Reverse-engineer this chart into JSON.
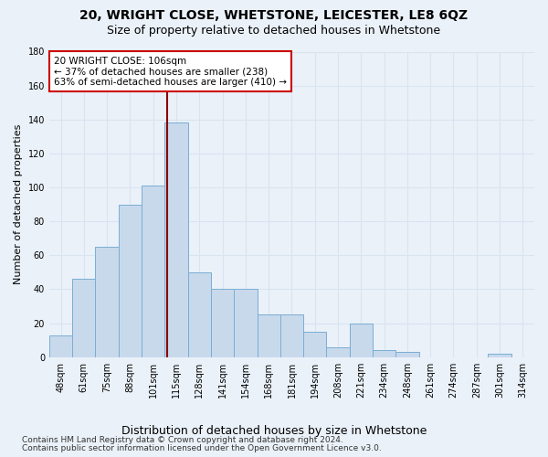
{
  "title1": "20, WRIGHT CLOSE, WHETSTONE, LEICESTER, LE8 6QZ",
  "title2": "Size of property relative to detached houses in Whetstone",
  "xlabel": "Distribution of detached houses by size in Whetstone",
  "ylabel": "Number of detached properties",
  "footnote1": "Contains HM Land Registry data © Crown copyright and database right 2024.",
  "footnote2": "Contains public sector information licensed under the Open Government Licence v3.0.",
  "bar_labels": [
    "48sqm",
    "61sqm",
    "75sqm",
    "88sqm",
    "101sqm",
    "115sqm",
    "128sqm",
    "141sqm",
    "154sqm",
    "168sqm",
    "181sqm",
    "194sqm",
    "208sqm",
    "221sqm",
    "234sqm",
    "248sqm",
    "261sqm",
    "274sqm",
    "287sqm",
    "301sqm",
    "314sqm"
  ],
  "bar_values": [
    13,
    46,
    65,
    90,
    101,
    138,
    50,
    40,
    40,
    25,
    25,
    15,
    6,
    20,
    4,
    3,
    0,
    0,
    0,
    2,
    0
  ],
  "bar_color": "#c8d9ec",
  "bar_edge_color": "#7aaed4",
  "annotation_label": "20 WRIGHT CLOSE: 106sqm",
  "annotation_line1": "← 37% of detached houses are smaller (238)",
  "annotation_line2": "63% of semi-detached houses are larger (410) →",
  "annotation_box_color": "#ffffff",
  "annotation_box_edge": "#cc0000",
  "vline_color": "#8b0000",
  "vline_x_index": 4.62,
  "ylim": [
    0,
    180
  ],
  "yticks": [
    0,
    20,
    40,
    60,
    80,
    100,
    120,
    140,
    160,
    180
  ],
  "bg_color": "#eaf1f9",
  "grid_color": "#d8e4f0",
  "title1_fontsize": 10,
  "title2_fontsize": 9,
  "xlabel_fontsize": 9,
  "ylabel_fontsize": 8,
  "tick_fontsize": 7,
  "annot_fontsize": 7.5,
  "footnote_fontsize": 6.5
}
